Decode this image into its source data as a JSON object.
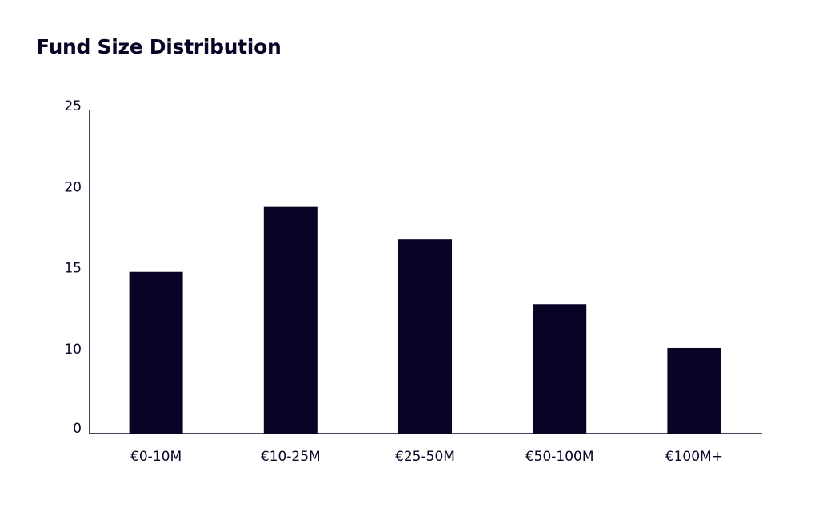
{
  "chart_data": {
    "type": "bar",
    "title": "Fund Size Distribution",
    "xlabel": "",
    "ylabel": "",
    "categories": [
      "€0-10M",
      "€10-25M",
      "€25-50M",
      "€50-100M",
      "€100M+"
    ],
    "values": [
      14.8,
      18.8,
      16.8,
      12.8,
      10.1
    ],
    "y_ticks": [
      {
        "label": "0",
        "value": 0
      },
      {
        "label": "10",
        "value": 10
      },
      {
        "label": "15",
        "value": 15
      },
      {
        "label": "20",
        "value": 20
      },
      {
        "label": "25",
        "value": 25
      }
    ],
    "y_axis_note": "Axis is non-linear: tick 0 sits two tick-spacings below 10",
    "ylim": [
      0,
      25
    ],
    "grid": false,
    "legend": "none",
    "colors": {
      "bar": "#0b0326",
      "axis": "#0b0326",
      "text": "#0b0326"
    }
  }
}
